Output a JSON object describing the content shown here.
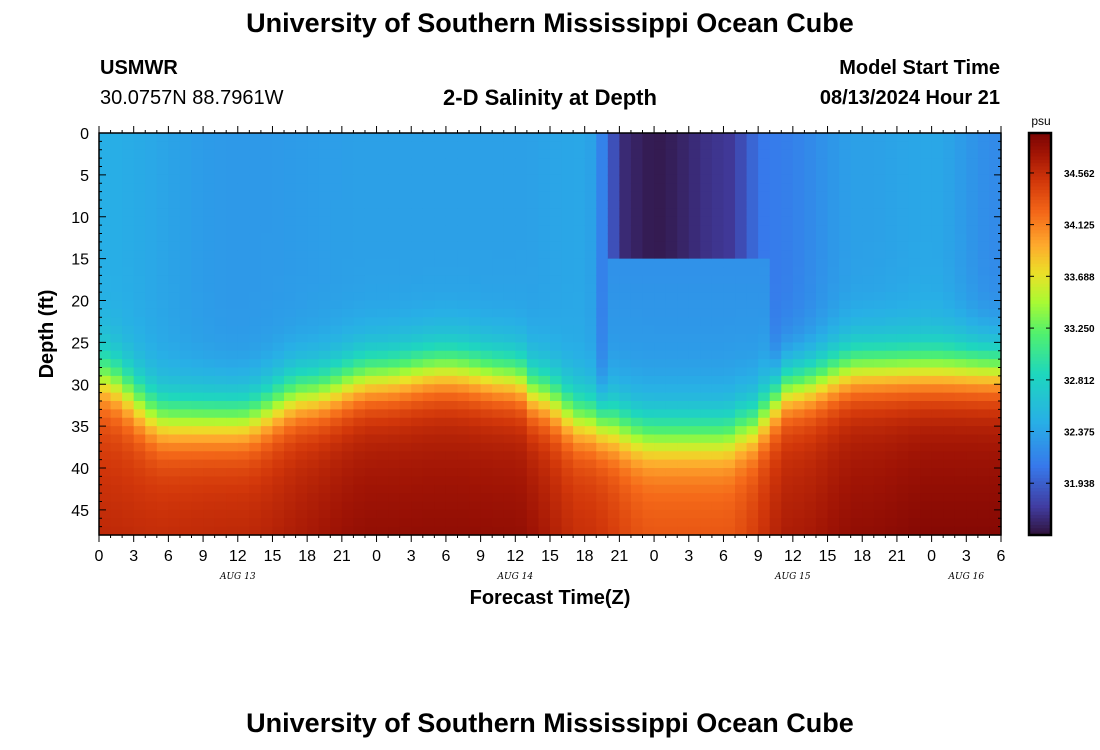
{
  "page": {
    "title_top": "University of Southern Mississippi Ocean Cube",
    "title_bottom": "University of Southern Mississippi Ocean Cube",
    "station": "USMWR",
    "coords": "30.0757N  88.7961W",
    "subtitle": "2-D Salinity at Depth",
    "model_label": "Model Start Time",
    "model_time": "08/13/2024 Hour 21"
  },
  "chart_data": {
    "type": "heatmap",
    "title": "2-D Salinity at Depth",
    "xlabel": "Forecast Time(Z)",
    "ylabel": "Depth (ft)",
    "x_tick_labels": [
      "0",
      "3",
      "6",
      "9",
      "12",
      "15",
      "18",
      "21",
      "0",
      "3",
      "6",
      "9",
      "12",
      "15",
      "18",
      "21",
      "0",
      "3",
      "6",
      "9",
      "12",
      "15",
      "18",
      "21",
      "0",
      "3",
      "6"
    ],
    "x_date_labels": [
      {
        "label": "AUG 13",
        "hour_index": 12
      },
      {
        "label": "AUG 14",
        "hour_index": 36
      },
      {
        "label": "AUG 15",
        "hour_index": 60
      },
      {
        "label": "AUG 16",
        "hour_index": 75
      }
    ],
    "x_range_hours": [
      0,
      78
    ],
    "y_ticks": [
      0,
      5,
      10,
      15,
      20,
      25,
      30,
      35,
      40,
      45
    ],
    "y_range": [
      0,
      48
    ],
    "colorbar_unit": "psu",
    "colorbar_ticks": [
      "34.562",
      "34.125",
      "33.688",
      "33.250",
      "32.812",
      "32.375",
      "31.938"
    ],
    "colorbar_range": [
      31.5,
      34.9
    ],
    "halocline_depth_ft": [
      [
        0,
        29
      ],
      [
        6,
        34
      ],
      [
        12,
        34
      ],
      [
        18,
        31
      ],
      [
        24,
        29
      ],
      [
        30,
        28
      ],
      [
        36,
        29
      ],
      [
        38,
        31
      ],
      [
        42,
        34
      ],
      [
        48,
        36
      ],
      [
        54,
        36
      ],
      [
        56,
        35
      ],
      [
        60,
        30
      ],
      [
        66,
        28
      ],
      [
        72,
        28
      ],
      [
        78,
        28
      ]
    ],
    "surface_salinity_psu": [
      [
        0,
        32.45
      ],
      [
        12,
        32.3
      ],
      [
        24,
        32.35
      ],
      [
        36,
        32.35
      ],
      [
        42,
        32.4
      ],
      [
        46,
        31.6
      ],
      [
        48,
        31.55
      ],
      [
        54,
        31.7
      ],
      [
        58,
        32.1
      ],
      [
        66,
        32.35
      ],
      [
        72,
        32.4
      ],
      [
        78,
        32.2
      ]
    ],
    "bottom_salinity_psu": [
      [
        0,
        34.4
      ],
      [
        12,
        34.45
      ],
      [
        24,
        34.6
      ],
      [
        36,
        34.6
      ],
      [
        42,
        34.4
      ],
      [
        48,
        34.2
      ],
      [
        54,
        34.2
      ],
      [
        60,
        34.5
      ],
      [
        66,
        34.6
      ],
      [
        72,
        34.65
      ],
      [
        78,
        34.65
      ]
    ]
  }
}
